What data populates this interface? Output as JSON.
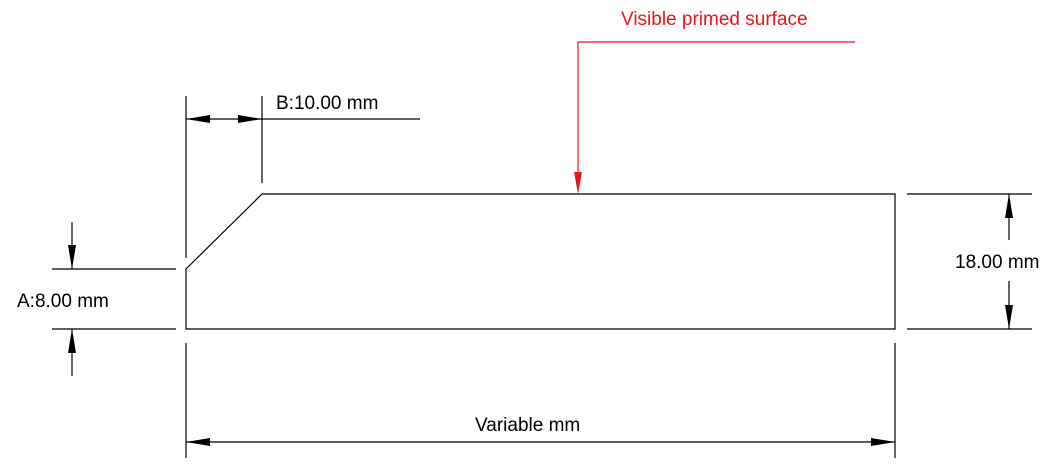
{
  "colors": {
    "outline": "#000000",
    "callout": "#e8141c"
  },
  "dimensions": {
    "chamfer_height": "A:8.00 mm",
    "chamfer_width": "B:10.00 mm",
    "height": "18.00 mm",
    "length": "Variable mm"
  },
  "callout": {
    "label": "Visible primed surface"
  }
}
